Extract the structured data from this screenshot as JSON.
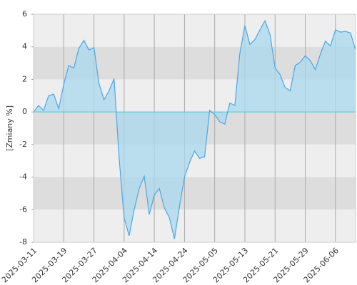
{
  "chart_data": {
    "type": "area",
    "y_label": "[Zmiany %]",
    "categories": [
      "2025-03-11",
      null,
      null,
      null,
      null,
      null,
      "2025-03-19",
      null,
      null,
      null,
      null,
      null,
      "2025-03-27",
      null,
      null,
      null,
      null,
      null,
      "2025-04-04",
      null,
      null,
      null,
      null,
      null,
      "2025-04-14",
      null,
      null,
      null,
      null,
      null,
      "2025-04-24",
      null,
      null,
      null,
      null,
      null,
      "2025-05-05",
      null,
      null,
      null,
      null,
      null,
      "2025-05-13",
      null,
      null,
      null,
      null,
      null,
      "2025-05-21",
      null,
      null,
      null,
      null,
      null,
      "2025-05-29",
      null,
      null,
      null,
      null,
      null,
      "2025-06-06",
      null,
      null,
      null,
      null
    ],
    "values": [
      0,
      0.4,
      0.1,
      1.0,
      1.1,
      0.2,
      1.7,
      2.85,
      2.7,
      3.9,
      4.4,
      3.8,
      3.95,
      1.75,
      0.75,
      1.3,
      2.05,
      -2.8,
      -6.5,
      -7.6,
      -6.0,
      -4.7,
      -3.95,
      -6.3,
      -5.1,
      -4.7,
      -5.9,
      -6.5,
      -7.8,
      -5.8,
      -4.0,
      -3.1,
      -2.4,
      -2.85,
      -2.75,
      0.1,
      -0.15,
      -0.6,
      -0.75,
      0.55,
      0.4,
      3.6,
      5.3,
      4.15,
      4.45,
      5.05,
      5.6,
      4.75,
      2.7,
      2.3,
      1.5,
      1.3,
      2.85,
      3.05,
      3.45,
      3.15,
      2.6,
      3.55,
      4.35,
      4.05,
      5.05,
      4.9,
      4.95,
      4.85,
      3.8
    ],
    "line_color": "#4da6e8",
    "fill_color": "#a8d8ec",
    "zero_line_color": "#44c8d8",
    "band_colors": [
      "#eeeeee",
      "#dddddd"
    ],
    "ylim": [
      -8,
      6
    ],
    "yticks": [
      6,
      4,
      2,
      0,
      -2,
      -4,
      -6,
      -8
    ],
    "grid": true
  }
}
